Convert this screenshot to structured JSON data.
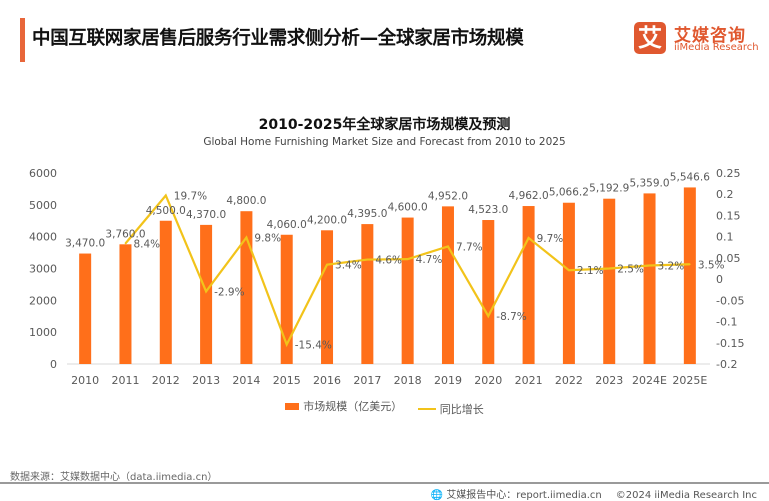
{
  "header": {
    "title": "中国互联网家居售后服务行业需求侧分析—全球家居市场规模",
    "logo_glyph": "艾",
    "logo_cn": "艾媒咨询",
    "logo_en": "iiMedia Research"
  },
  "colors": {
    "accent": "#E8663A",
    "bar": "#FF6F1A",
    "line": "#F2C31A",
    "logo": "#E0582F"
  },
  "chart_data": {
    "type": "bar+line",
    "title": "2010-2025年全球家居市场规模及预测",
    "subtitle": "Global Home Furnishing Market Size and Forecast from 2010 to 2025",
    "categories": [
      "2010",
      "2011",
      "2012",
      "2013",
      "2014",
      "2015",
      "2016",
      "2017",
      "2018",
      "2019",
      "2020",
      "2021",
      "2022",
      "2023",
      "2024E",
      "2025E"
    ],
    "series": [
      {
        "name": "市场规模（亿美元）",
        "type": "bar",
        "axis": "left",
        "values": [
          3470.0,
          3760.0,
          4500.0,
          4370.0,
          4800.0,
          4060.0,
          4200.0,
          4395.0,
          4600.0,
          4952.0,
          4523.0,
          4962.0,
          5066.2,
          5192.9,
          5359.0,
          5546.6
        ],
        "labels": [
          "3,470.0",
          "3,760.0",
          "4,500.0",
          "4,370.0",
          "4,800.0",
          "4,060.0",
          "4,200.0",
          "4,395.0",
          "4,600.0",
          "4,952.0",
          "4,523.0",
          "4,962.0",
          "5,066.2",
          "5,192.9",
          "5,359.0",
          "5,546.6"
        ]
      },
      {
        "name": "同比增长",
        "type": "line",
        "axis": "right",
        "values": [
          null,
          0.084,
          0.197,
          -0.029,
          0.098,
          -0.154,
          0.034,
          0.046,
          0.047,
          0.077,
          -0.087,
          0.097,
          0.021,
          0.025,
          0.032,
          0.035
        ],
        "labels": [
          null,
          "8.4%",
          "19.7%",
          "-2.9%",
          "9.8%",
          "-15.4%",
          "3.4%",
          "4.6%",
          "4.7%",
          "7.7%",
          "-8.7%",
          "9.7%",
          "2.1%",
          "2.5%",
          "3.2%",
          "3.5%"
        ]
      }
    ],
    "y_left": {
      "range": [
        0,
        6000
      ],
      "ticks": [
        0,
        1000,
        2000,
        3000,
        4000,
        5000,
        6000
      ],
      "tick_labels": [
        "0",
        "1000",
        "2000",
        "3000",
        "4000",
        "5000",
        "6000"
      ]
    },
    "y_right": {
      "range": [
        -0.2,
        0.25
      ],
      "ticks": [
        0.25,
        0.2,
        0.15,
        0.1,
        0.05,
        0,
        -0.05,
        -0.1,
        -0.15,
        -0.2
      ],
      "tick_labels": [
        "0.25",
        "0.2",
        "0.15",
        "0.1",
        "0.05",
        "0",
        "-0.05",
        "-0.1",
        "-0.15",
        "-0.2"
      ]
    },
    "grid": false,
    "legend": {
      "position": "bottom",
      "items": [
        "市场规模（亿美元）",
        "同比增长"
      ]
    }
  },
  "footer": {
    "source": "数据来源：艾媒数据中心（data.iimedia.cn）",
    "report_center": "艾媒报告中心：report.iimedia.cn",
    "copyright": "©2024  iiMedia Research  Inc"
  }
}
